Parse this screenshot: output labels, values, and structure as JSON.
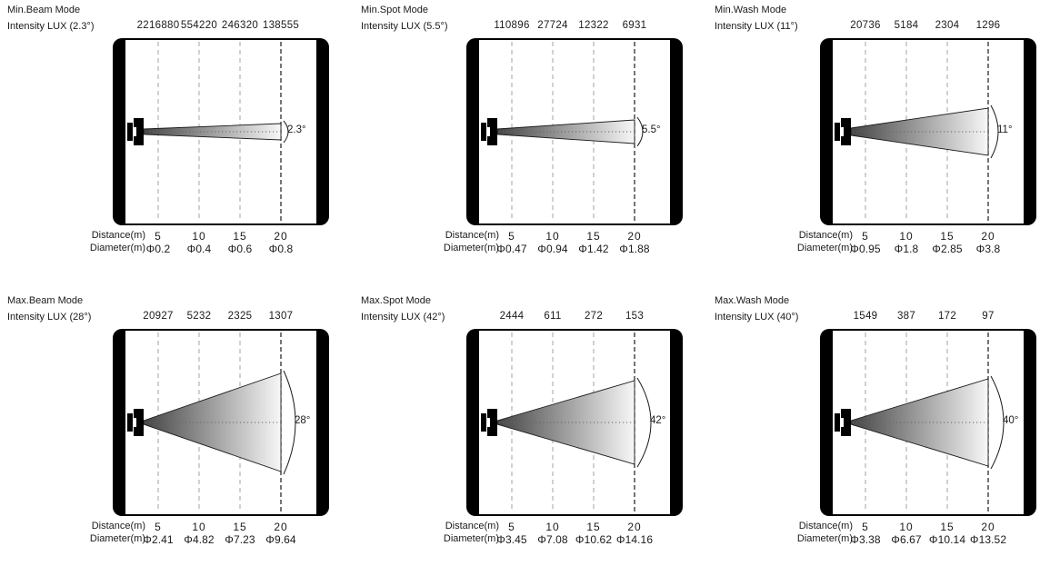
{
  "colors": {
    "ink": "#1a1a1a",
    "beam_dark": "#454545",
    "beam_light": "#f7f7f7",
    "grid_dash_light": "#a3a3a3",
    "grid_dash_dark": "#1a1a1a"
  },
  "panels": [
    {
      "title": "Min.Beam Mode",
      "intensity_label": "Intensity LUX (2.3°)",
      "intensity_values": [
        "2216880",
        "554220",
        "246320",
        "138555"
      ],
      "angle_label": "2.3°",
      "distance_label": "Distance(m)",
      "distances": [
        "5",
        "10",
        "15",
        "20"
      ],
      "diameter_label": "Diameter(m)",
      "diameters": [
        "Φ0.2",
        "Φ0.4",
        "Φ0.6",
        "Φ0.8"
      ]
    },
    {
      "title": "Min.Spot Mode",
      "intensity_label": "Intensity LUX (5.5°)",
      "intensity_values": [
        "110896",
        "27724",
        "12322",
        "6931"
      ],
      "angle_label": "5.5°",
      "distance_label": "Distance(m)",
      "distances": [
        "5",
        "10",
        "15",
        "20"
      ],
      "diameter_label": "Diameter(m)",
      "diameters": [
        "Φ0.47",
        "Φ0.94",
        "Φ1.42",
        "Φ1.88"
      ]
    },
    {
      "title": "Min.Wash Mode",
      "intensity_label": "Intensity LUX (11°)",
      "intensity_values": [
        "20736",
        "5184",
        "2304",
        "1296"
      ],
      "angle_label": "11°",
      "distance_label": "Distance(m)",
      "distances": [
        "5",
        "10",
        "15",
        "20"
      ],
      "diameter_label": "Diameter(m)",
      "diameters": [
        "Φ0.95",
        "Φ1.8",
        "Φ2.85",
        "Φ3.8"
      ]
    },
    {
      "title": "Max.Beam Mode",
      "intensity_label": "Intensity LUX (28°)",
      "intensity_values": [
        "20927",
        "5232",
        "2325",
        "1307"
      ],
      "angle_label": "28°",
      "distance_label": "Distance(m)",
      "distances": [
        "5",
        "10",
        "15",
        "20"
      ],
      "diameter_label": "Diameter(m)",
      "diameters": [
        "Φ2.41",
        "Φ4.82",
        "Φ7.23",
        "Φ9.64"
      ]
    },
    {
      "title": "Max.Spot Mode",
      "intensity_label": "Intensity LUX (42°)",
      "intensity_values": [
        "2444",
        "611",
        "272",
        "153"
      ],
      "angle_label": "42°",
      "distance_label": "Distance(m)",
      "distances": [
        "5",
        "10",
        "15",
        "20"
      ],
      "diameter_label": "Diameter(m)",
      "diameters": [
        "Φ3.45",
        "Φ7.08",
        "Φ10.62",
        "Φ14.16"
      ]
    },
    {
      "title": "Max.Wash Mode",
      "intensity_label": "Intensity LUX (40°)",
      "intensity_values": [
        "1549",
        "387",
        "172",
        "97"
      ],
      "angle_label": "40°",
      "distance_label": "Distance(m)",
      "distances": [
        "5",
        "10",
        "15",
        "20"
      ],
      "diameter_label": "Diameter(m)",
      "diameters": [
        "Φ3.38",
        "Φ6.67",
        "Φ10.14",
        "Φ13.52"
      ]
    }
  ]
}
